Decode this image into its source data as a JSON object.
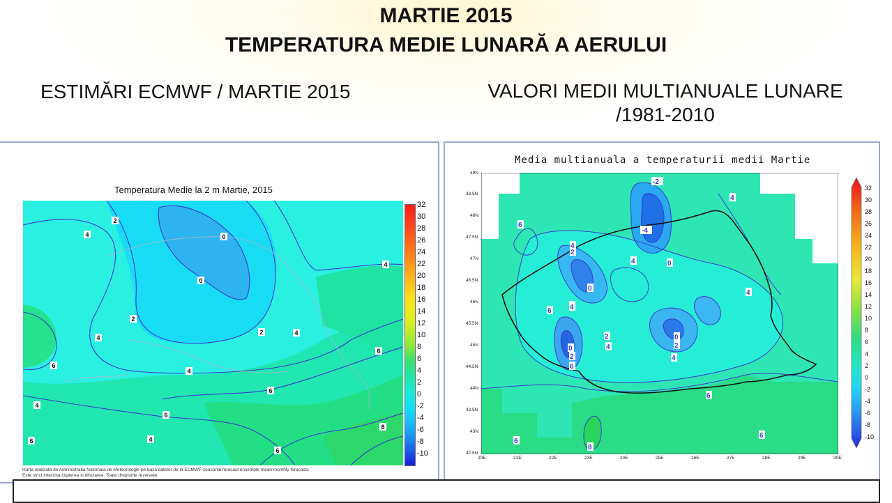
{
  "header": {
    "title_line1": "MARTIE 2015",
    "title_line2": "TEMPERATURA MEDIE LUNARĂ A AERULUI",
    "left_subtitle": "ESTIMĂRI ECMWF / MARTIE 2015",
    "right_subtitle_line1": "VALORI MEDII MULTIANUALE LUNARE",
    "right_subtitle_line2": "/1981-2010"
  },
  "left_map": {
    "title": "Temperatura Medie la 2 m Martie, 2015",
    "footer_line1": "Harta realizata de Administratia Nationala de Meteorologie pe baza datelor de la ECMWF-seasonal forecast ensemble mean monthly forecasts",
    "footer_line2": "Este strict interzisa copierea si difuzarea. Toate drepturile rezervate.",
    "colorbar_labels": [
      "32",
      "30",
      "28",
      "26",
      "24",
      "22",
      "20",
      "18",
      "16",
      "14",
      "12",
      "10",
      "8",
      "6",
      "4",
      "2",
      "0",
      "-2",
      "-4",
      "-6",
      "-8",
      "-10"
    ],
    "contour_labels": [
      "2",
      "4",
      "0",
      "0",
      "2",
      "4",
      "2",
      "4",
      "4",
      "4",
      "6",
      "6",
      "4",
      "6",
      "6",
      "6",
      "8",
      "6",
      "4"
    ]
  },
  "right_map": {
    "title": "Media multianuala a temperaturii medii Martie",
    "colorbar_labels": [
      "32",
      "30",
      "28",
      "26",
      "24",
      "22",
      "20",
      "18",
      "16",
      "14",
      "12",
      "10",
      "8",
      "6",
      "4",
      "2",
      "0",
      "-2",
      "-4",
      "-6",
      "-8",
      "-10"
    ],
    "lat_labels": [
      "49N",
      "48.5N",
      "48N",
      "47.5N",
      "47N",
      "46.5N",
      "46N",
      "45.5N",
      "45N",
      "44.5N",
      "44N",
      "43.5N",
      "43N",
      "42.5N"
    ],
    "lon_labels": [
      "20E",
      "21E",
      "22E",
      "23E",
      "24E",
      "25E",
      "26E",
      "27E",
      "28E",
      "29E",
      "30E"
    ],
    "contour_labels": [
      "-2",
      "-4",
      "4",
      "6",
      "2",
      "4",
      "4",
      "0",
      "0",
      "4",
      "6",
      "4",
      "0",
      "2",
      "4",
      "2",
      "4",
      "6",
      "0",
      "2",
      "4",
      "6",
      "6",
      "8",
      "6"
    ]
  },
  "colors": {
    "cyan": "#00e5f5",
    "light_cyan": "#2df0e8",
    "aqua_green": "#1ee8b8",
    "green": "#22e07a",
    "blue_mid": "#2e9cf0",
    "blue_dark": "#2a6be8",
    "contour": "#3a3acc"
  }
}
